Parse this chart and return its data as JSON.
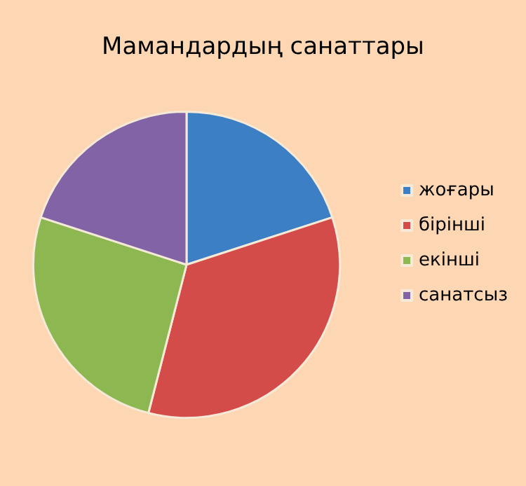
{
  "chart_data": {
    "type": "pie",
    "title": "Мамандардың санаттары",
    "categories": [
      "жоғары",
      "бірінші",
      "екінші",
      "санатсыз"
    ],
    "values": [
      20,
      34,
      26,
      20
    ],
    "colors": [
      "#3d7fc4",
      "#d44c4a",
      "#8db851",
      "#8264a6"
    ],
    "legend": "right"
  }
}
